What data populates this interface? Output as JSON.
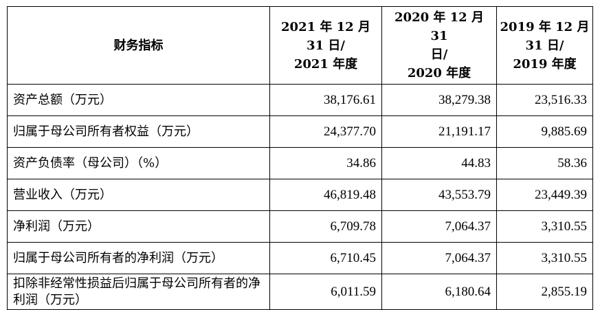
{
  "table": {
    "headers": [
      {
        "lines": [
          "财务指标"
        ]
      },
      {
        "lines": [
          "2021 年 12 月",
          "31 日/",
          "2021 年度"
        ]
      },
      {
        "lines": [
          "2020 年 12 月 31",
          "日/",
          "2020 年度"
        ]
      },
      {
        "lines": [
          "2019 年 12 月",
          "31 日/",
          "2019 年度"
        ]
      }
    ],
    "rows": [
      {
        "label": "资产总额（万元）",
        "values": [
          "38,176.61",
          "38,279.38",
          "23,516.33"
        ]
      },
      {
        "label": "归属于母公司所有者权益（万元）",
        "values": [
          "24,377.70",
          "21,191.17",
          "9,885.69"
        ]
      },
      {
        "label": "资产负债率（母公司）（%）",
        "values": [
          "34.86",
          "44.83",
          "58.36"
        ]
      },
      {
        "label": "营业收入（万元）",
        "values": [
          "46,819.48",
          "43,553.79",
          "23,449.39"
        ]
      },
      {
        "label": "净利润（万元）",
        "values": [
          "6,709.78",
          "7,064.37",
          "3,310.55"
        ]
      },
      {
        "label": "归属于母公司所有者的净利润（万元）",
        "values": [
          "6,710.45",
          "7,064.37",
          "3,310.55"
        ]
      },
      {
        "label": "扣除非经常性损益后归属于母公司所有者的净利润（万元）",
        "values": [
          "6,011.59",
          "6,180.64",
          "2,855.19"
        ]
      }
    ]
  }
}
